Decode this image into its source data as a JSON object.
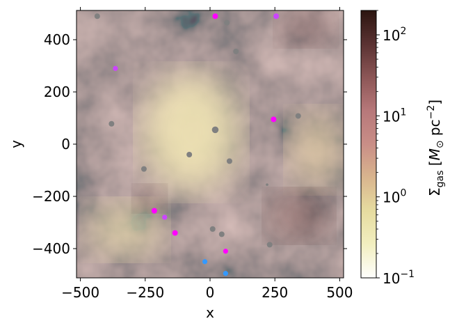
{
  "chart_data": {
    "type": "scatter",
    "xlabel": "x",
    "ylabel": "y",
    "xlim": [
      -515,
      515
    ],
    "ylim": [
      -512,
      512
    ],
    "xticks": [
      -500,
      -250,
      0,
      250,
      500
    ],
    "xtick_labels": [
      "−500",
      "−250",
      "0",
      "250",
      "500"
    ],
    "yticks": [
      400,
      200,
      0,
      -200,
      -400
    ],
    "ytick_labels": [
      "400",
      "200",
      "0",
      "−200",
      "−400"
    ],
    "grid": false,
    "background": "gas surface density map (log colour scale)",
    "colorbar": {
      "scale": "log",
      "range": [
        0.1,
        200
      ],
      "tick_values": [
        0.1,
        1,
        10,
        100
      ],
      "tick_labels": [
        "10",
        "10",
        "10",
        "10"
      ],
      "tick_exponents": [
        "−1",
        "0",
        "1",
        "2"
      ],
      "label_main": "Σ",
      "label_sub": "gas",
      "label_rest": " [",
      "label_m": "M",
      "label_m_sub": "⊙",
      "label_unit": " pc",
      "label_unit_exp": "−2",
      "label_close": "]",
      "colors": [
        "#fefefc",
        "#f2efc0",
        "#e6dca0",
        "#d9b58e",
        "#c98e87",
        "#b7787a",
        "#8c5656",
        "#5a3232",
        "#2c1510"
      ]
    },
    "series": [
      {
        "color": "#808080",
        "points": [
          [
            -435,
            490
          ],
          [
            65,
            465
          ],
          [
            100,
            355
          ],
          [
            -380,
            78
          ],
          [
            20,
            55
          ],
          [
            340,
            108
          ],
          [
            -80,
            -40
          ],
          [
            75,
            -65
          ],
          [
            -255,
            -95
          ],
          [
            220,
            -155
          ],
          [
            10,
            -325
          ],
          [
            45,
            -345
          ],
          [
            230,
            -385
          ]
        ],
        "sizes": [
          1,
          1,
          1,
          1,
          1.2,
          1,
          1,
          1,
          1,
          0.45,
          1,
          1,
          1
        ]
      },
      {
        "color": "#ff00ff",
        "points": [
          [
            20,
            490
          ],
          [
            245,
            95
          ],
          [
            -215,
            -255
          ],
          [
            -135,
            -340
          ],
          [
            60,
            -410
          ]
        ],
        "sizes": [
          1,
          1,
          1,
          1,
          0.9
        ]
      },
      {
        "color": "#cc44ff",
        "points": [
          [
            255,
            490
          ],
          [
            -365,
            290
          ],
          [
            -175,
            -280
          ]
        ],
        "sizes": [
          1,
          0.9,
          0.9
        ]
      },
      {
        "color": "#3399ff",
        "points": [
          [
            -20,
            -450
          ],
          [
            60,
            -495
          ]
        ],
        "sizes": [
          0.9,
          0.9
        ]
      }
    ]
  }
}
